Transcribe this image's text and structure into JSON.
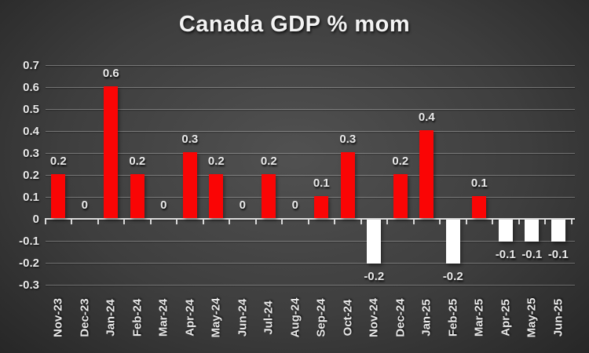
{
  "chart_data": {
    "type": "bar",
    "title": "Canada GDP % mom",
    "categories": [
      "Nov-23",
      "Dec-23",
      "Jan-24",
      "Feb-24",
      "Mar-24",
      "Apr-24",
      "May-24",
      "Jun-24",
      "Jul-24",
      "Aug-24",
      "Sep-24",
      "Oct-24",
      "Nov-24",
      "Dec-24",
      "Jan-25",
      "Feb-25",
      "Mar-25",
      "Apr-25",
      "May-25",
      "Jun-25"
    ],
    "values": [
      0.2,
      0,
      0.6,
      0.2,
      0,
      0.3,
      0.2,
      0,
      0.2,
      0,
      0.1,
      0.3,
      -0.2,
      0.2,
      0.4,
      -0.2,
      0.1,
      -0.1,
      -0.1,
      -0.1
    ],
    "labels": [
      "0.2",
      "0",
      "0.6",
      "0.2",
      "0",
      "0.3",
      "0.2",
      "0",
      "0.2",
      "0",
      "0.1",
      "0.3",
      "-0.2",
      "0.2",
      "0.4",
      "-0.2",
      "0.1",
      "-0.1",
      "-0.1",
      "-0.1"
    ],
    "y_ticks": [
      "0.7",
      "0.6",
      "0.5",
      "0.4",
      "0.3",
      "0.2",
      "0.1",
      "0",
      "-0.1",
      "-0.2",
      "-0.3"
    ],
    "ylim": [
      -0.3,
      0.7
    ],
    "xlabel": "",
    "ylabel": "",
    "grid": true,
    "legend": false,
    "colors": {
      "positive_bar": "#fa0505",
      "negative_bar": "#ffffff",
      "axis_line": "#d9d9d9",
      "label_text": "#e9e9e9",
      "background_center": "#505050",
      "background_edge": "#252525"
    }
  }
}
